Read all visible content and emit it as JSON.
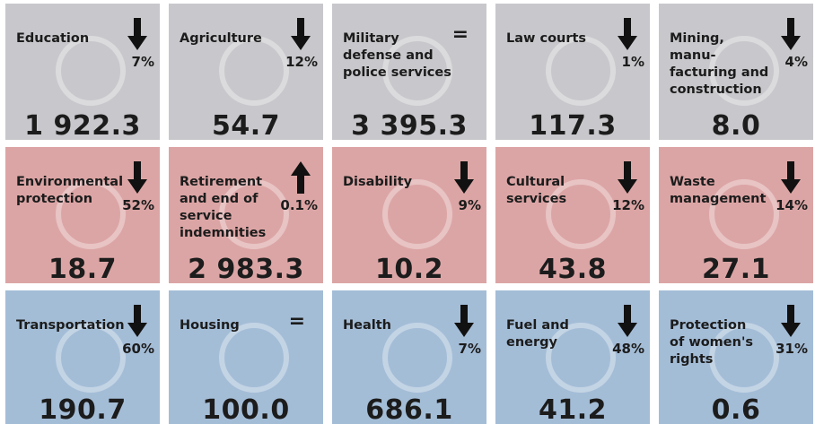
{
  "tiles": [
    {
      "title": [
        "Education"
      ],
      "change": "7%",
      "trend": "down",
      "value": "1 922.3",
      "color": "gray"
    },
    {
      "title": [
        "Agriculture"
      ],
      "change": "12%",
      "trend": "down",
      "value": "54.7",
      "color": "gray"
    },
    {
      "title": [
        "Military",
        "defense and",
        "police services"
      ],
      "change": "=",
      "trend": "equal",
      "value": "3 395.3",
      "color": "gray"
    },
    {
      "title": [
        "Law courts"
      ],
      "change": "1%",
      "trend": "down",
      "value": "117.3",
      "color": "gray"
    },
    {
      "title": [
        "Mining,",
        "manu-",
        "facturing and",
        "construction"
      ],
      "change": "4%",
      "trend": "down",
      "value": "8.0",
      "color": "gray"
    },
    {
      "title": [
        "Environmental",
        "protection"
      ],
      "change": "52%",
      "trend": "down",
      "value": "18.7",
      "color": "pink"
    },
    {
      "title": [
        "Retirement",
        "and end of",
        "service",
        "indemnities"
      ],
      "change": "0.1%",
      "trend": "up",
      "value": "2 983.3",
      "color": "pink"
    },
    {
      "title": [
        "Disability"
      ],
      "change": "9%",
      "trend": "down",
      "value": "10.2",
      "color": "pink"
    },
    {
      "title": [
        "Cultural",
        "services"
      ],
      "change": "12%",
      "trend": "down",
      "value": "43.8",
      "color": "pink"
    },
    {
      "title": [
        "Waste",
        "management"
      ],
      "change": "14%",
      "trend": "down",
      "value": "27.1",
      "color": "pink"
    },
    {
      "title": [
        "Transportation"
      ],
      "change": "60%",
      "trend": "down",
      "value": "190.7",
      "color": "blue"
    },
    {
      "title": [
        "Housing"
      ],
      "change": "=",
      "trend": "equal",
      "value": "100.0",
      "color": "blue"
    },
    {
      "title": [
        "Health"
      ],
      "change": "7%",
      "trend": "down",
      "value": "686.1",
      "color": "blue"
    },
    {
      "title": [
        "Fuel and",
        "energy"
      ],
      "change": "48%",
      "trend": "down",
      "value": "41.2",
      "color": "blue"
    },
    {
      "title": [
        "Protection",
        "of women's",
        "rights"
      ],
      "change": "31%",
      "trend": "down",
      "value": "0.6",
      "color": "blue"
    }
  ]
}
